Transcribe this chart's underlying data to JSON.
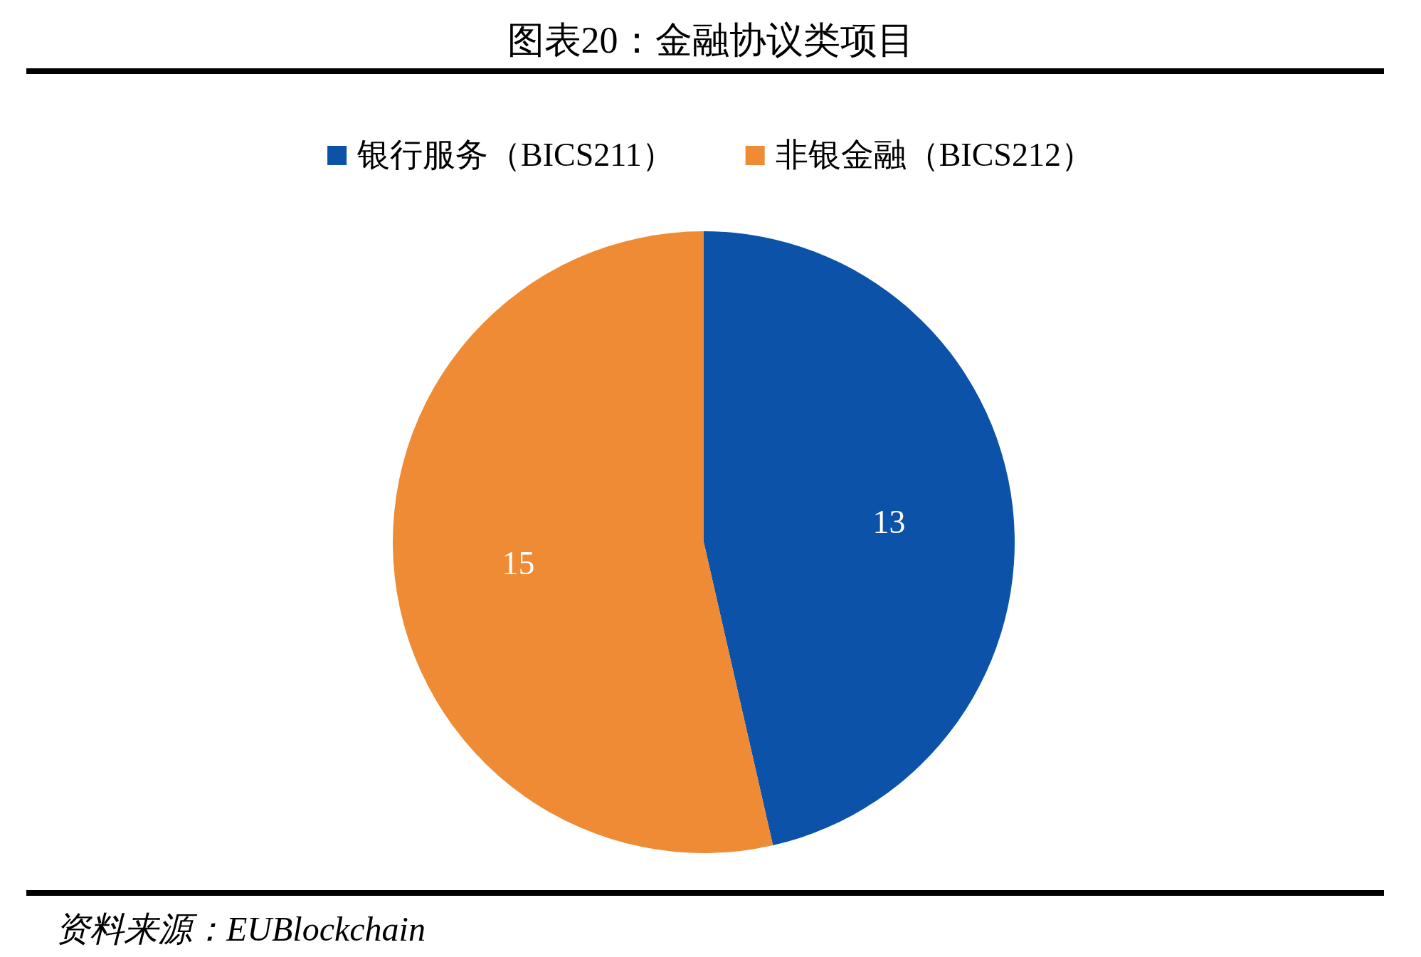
{
  "chart_data": {
    "type": "pie",
    "title": "图表20：金融协议类项目",
    "categories": [
      "银行服务（BICS211）",
      "非银金融（BICS212）"
    ],
    "values": [
      13,
      15
    ],
    "colors": [
      "#0b52a8",
      "#ef8b34"
    ],
    "legend": "top",
    "data_labels": true,
    "annotations": [
      "资料来源：EUBlockchain"
    ]
  }
}
